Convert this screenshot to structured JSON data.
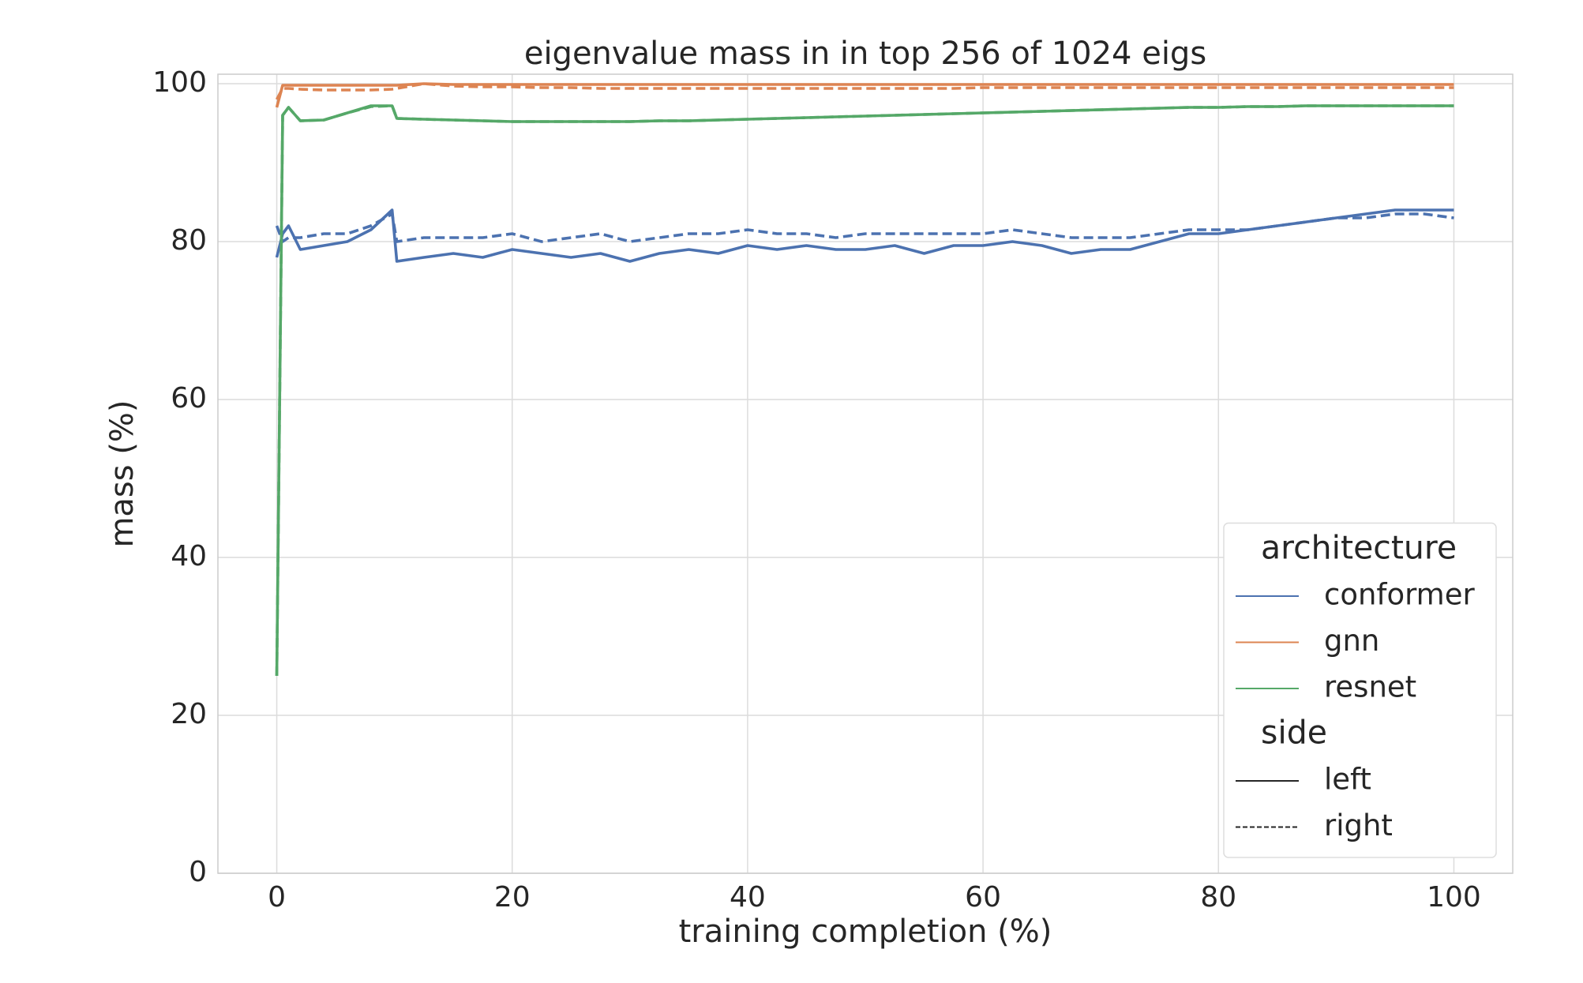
{
  "chart_data": {
    "type": "line",
    "title": "eigenvalue mass in in top 256 of 1024 eigs",
    "xlabel": "training completion (%)",
    "ylabel": "mass (%)",
    "x": [
      0,
      0.5,
      1,
      2,
      4,
      6,
      8,
      9.8,
      10.2,
      12.5,
      15,
      17.5,
      20,
      22.5,
      25,
      27.5,
      30,
      32.5,
      35,
      37.5,
      40,
      42.5,
      45,
      47.5,
      50,
      52.5,
      55,
      57.5,
      60,
      62.5,
      65,
      67.5,
      70,
      72.5,
      75,
      77.5,
      80,
      82.5,
      85,
      87.5,
      90,
      92.5,
      95,
      97.5,
      100
    ],
    "series": [
      {
        "color": "#4c72b0",
        "dash": "solid",
        "values": [
          78,
          81,
          82,
          79,
          79.5,
          80,
          81.5,
          84,
          77.5,
          78,
          78.5,
          78,
          79,
          78.5,
          78,
          78.5,
          77.5,
          78.5,
          79,
          78.5,
          79.5,
          79,
          79.5,
          79,
          79,
          79.5,
          78.5,
          79.5,
          79.5,
          80,
          79.5,
          78.5,
          79,
          79,
          80,
          81,
          81,
          81.5,
          82,
          82.5,
          83,
          83.5,
          84,
          84,
          84
        ]
      },
      {
        "color": "#4c72b0",
        "dash": "dashed",
        "values": [
          82,
          80,
          80.5,
          80.5,
          81,
          81,
          82,
          83.5,
          80,
          80.5,
          80.5,
          80.5,
          81,
          80,
          80.5,
          81,
          80,
          80.5,
          81,
          81,
          81.5,
          81,
          81,
          80.5,
          81,
          81,
          81,
          81,
          81,
          81.5,
          81,
          80.5,
          80.5,
          80.5,
          81,
          81.5,
          81.5,
          81.5,
          82,
          82.5,
          83,
          83,
          83.5,
          83.5,
          83
        ]
      },
      {
        "color": "#dd8452",
        "dash": "solid",
        "values": [
          97,
          99.8,
          99.8,
          99.8,
          99.8,
          99.8,
          99.8,
          99.8,
          99.8,
          100,
          99.9,
          99.9,
          99.9,
          99.9,
          99.9,
          99.9,
          99.9,
          99.9,
          99.9,
          99.9,
          99.9,
          99.9,
          99.9,
          99.9,
          99.9,
          99.9,
          99.9,
          99.9,
          99.9,
          99.9,
          99.9,
          99.9,
          99.9,
          99.9,
          99.9,
          99.9,
          99.9,
          99.9,
          99.9,
          99.9,
          99.9,
          99.9,
          99.9,
          99.9,
          99.9
        ]
      },
      {
        "color": "#dd8452",
        "dash": "dashed",
        "values": [
          98,
          99.4,
          99.4,
          99.3,
          99.2,
          99.2,
          99.2,
          99.3,
          99.4,
          100,
          99.7,
          99.6,
          99.6,
          99.5,
          99.5,
          99.4,
          99.4,
          99.4,
          99.4,
          99.4,
          99.4,
          99.4,
          99.4,
          99.4,
          99.4,
          99.4,
          99.4,
          99.4,
          99.5,
          99.5,
          99.5,
          99.5,
          99.5,
          99.5,
          99.5,
          99.5,
          99.5,
          99.5,
          99.5,
          99.5,
          99.5,
          99.5,
          99.5,
          99.5,
          99.5
        ]
      },
      {
        "color": "#55a868",
        "dash": "solid",
        "values": [
          25,
          96,
          97,
          95.3,
          95.4,
          96.3,
          97.2,
          97.2,
          95.6,
          95.5,
          95.4,
          95.3,
          95.2,
          95.2,
          95.2,
          95.2,
          95.2,
          95.3,
          95.3,
          95.4,
          95.5,
          95.6,
          95.7,
          95.8,
          95.9,
          96,
          96.1,
          96.2,
          96.3,
          96.4,
          96.5,
          96.6,
          96.7,
          96.8,
          96.9,
          97,
          97,
          97.1,
          97.1,
          97.2,
          97.2,
          97.2,
          97.2,
          97.2,
          97.2
        ]
      },
      {
        "color": "#55a868",
        "dash": "dashed",
        "values": [
          25,
          96,
          97,
          95.3,
          95.4,
          96.3,
          97.1,
          97.2,
          95.6,
          95.5,
          95.4,
          95.3,
          95.2,
          95.2,
          95.2,
          95.2,
          95.2,
          95.3,
          95.3,
          95.4,
          95.5,
          95.6,
          95.7,
          95.8,
          95.9,
          96,
          96.1,
          96.2,
          96.3,
          96.4,
          96.5,
          96.6,
          96.7,
          96.8,
          96.9,
          97,
          97,
          97.1,
          97.1,
          97.2,
          97.2,
          97.2,
          97.2,
          97.2,
          97.2
        ]
      }
    ],
    "xlim": [
      -5,
      105
    ],
    "xticks": [
      0,
      20,
      40,
      60,
      80,
      100
    ],
    "ylim": [
      0,
      101.2
    ],
    "yticks": [
      0,
      20,
      40,
      60,
      80,
      100
    ],
    "grid": true,
    "legend": {
      "position": "lower right",
      "groups": [
        {
          "title": "architecture",
          "items": [
            {
              "label": "conformer",
              "color": "#4c72b0",
              "dash": "solid"
            },
            {
              "label": "gnn",
              "color": "#dd8452",
              "dash": "solid"
            },
            {
              "label": "resnet",
              "color": "#55a868",
              "dash": "solid"
            }
          ]
        },
        {
          "title": "side",
          "items": [
            {
              "label": "left",
              "color": "#262626",
              "dash": "solid"
            },
            {
              "label": "right",
              "color": "#262626",
              "dash": "dashed"
            }
          ]
        }
      ]
    }
  }
}
